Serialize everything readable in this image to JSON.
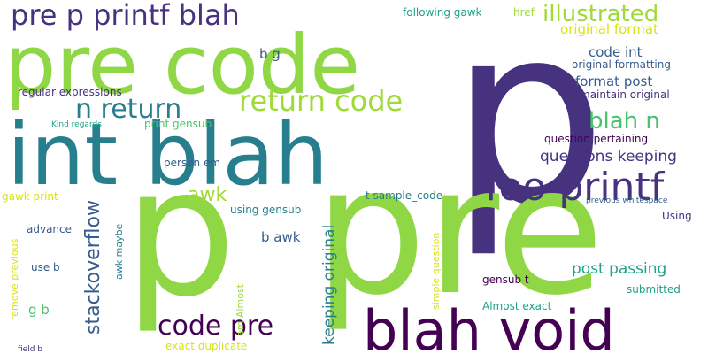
{
  "palette": {
    "background": "#ffffff",
    "dark_purple": "#440154",
    "indigo": "#46327e",
    "blue": "#365c8d",
    "teal": "#277f8e",
    "sea_green": "#1fa187",
    "green": "#4ac16d",
    "lime": "#a0da39",
    "yellow": "#d8e219"
  },
  "words": [
    {
      "text": "p",
      "color": "#46327e",
      "size": 280,
      "rotated": false
    },
    {
      "text": "pre",
      "color": "#8fd744",
      "size": 200,
      "rotated": false
    },
    {
      "text": "p",
      "color": "#8fd744",
      "size": 200,
      "rotated": false
    },
    {
      "text": "pre code",
      "color": "#8fd744",
      "size": 92,
      "rotated": false
    },
    {
      "text": "int blah",
      "color": "#277f8e",
      "size": 96,
      "rotated": false
    },
    {
      "text": "blah void",
      "color": "#440154",
      "size": 62,
      "rotated": false
    },
    {
      "text": "foo printf",
      "color": "#46327e",
      "size": 44,
      "rotated": false
    },
    {
      "text": "pre p printf blah",
      "color": "#46327e",
      "size": 32,
      "rotated": false
    },
    {
      "text": "return code",
      "color": "#a0da39",
      "size": 32,
      "rotated": false
    },
    {
      "text": "n return",
      "color": "#277f8e",
      "size": 30,
      "rotated": false
    },
    {
      "text": "code pre",
      "color": "#440154",
      "size": 30,
      "rotated": false
    },
    {
      "text": "illustrated",
      "color": "#a0da39",
      "size": 26,
      "rotated": false
    },
    {
      "text": "blah n",
      "color": "#4ac16d",
      "size": 26,
      "rotated": false
    },
    {
      "text": "stackoverflow",
      "color": "#365c8d",
      "size": 22,
      "rotated": true
    },
    {
      "text": "awk",
      "color": "#a0da39",
      "size": 22,
      "rotated": false
    },
    {
      "text": "keeping original",
      "color": "#277f8e",
      "size": 17,
      "rotated": true
    },
    {
      "text": "questions keeping",
      "color": "#46327e",
      "size": 17,
      "rotated": false
    },
    {
      "text": "post passing",
      "color": "#1fa187",
      "size": 17,
      "rotated": false
    },
    {
      "text": "original format",
      "color": "#d8e219",
      "size": 15,
      "rotated": false
    },
    {
      "text": "code int",
      "color": "#365c8d",
      "size": 15,
      "rotated": false
    },
    {
      "text": "format post",
      "color": "#365c8d",
      "size": 15,
      "rotated": false
    },
    {
      "text": "b awk",
      "color": "#365c8d",
      "size": 15,
      "rotated": false
    },
    {
      "text": "b g",
      "color": "#365c8d",
      "size": 15,
      "rotated": false
    },
    {
      "text": "g b",
      "color": "#4ac16d",
      "size": 15,
      "rotated": false
    },
    {
      "text": "following gawk",
      "color": "#1fa187",
      "size": 12,
      "rotated": false
    },
    {
      "text": "href",
      "color": "#a0da39",
      "size": 12,
      "rotated": false
    },
    {
      "text": "original formatting",
      "color": "#365c8d",
      "size": 12,
      "rotated": false
    },
    {
      "text": "regular expressions",
      "color": "#46327e",
      "size": 12,
      "rotated": false
    },
    {
      "text": "maintain original",
      "color": "#46327e",
      "size": 12,
      "rotated": false
    },
    {
      "text": "Kind regards",
      "color": "#1fa187",
      "size": 9,
      "rotated": false
    },
    {
      "text": "print gensub",
      "color": "#4ac16d",
      "size": 12,
      "rotated": false
    },
    {
      "text": "question pertaining",
      "color": "#440154",
      "size": 12,
      "rotated": false
    },
    {
      "text": "person em",
      "color": "#365c8d",
      "size": 12,
      "rotated": false
    },
    {
      "text": "gawk print",
      "color": "#d8e219",
      "size": 12,
      "rotated": false
    },
    {
      "text": "t sample_code",
      "color": "#277f8e",
      "size": 12,
      "rotated": false
    },
    {
      "text": "using gensub",
      "color": "#277f8e",
      "size": 12,
      "rotated": false
    },
    {
      "text": "advance",
      "color": "#365c8d",
      "size": 12,
      "rotated": false
    },
    {
      "text": "previous whitespace",
      "color": "#365c8d",
      "size": 9,
      "rotated": false
    },
    {
      "text": "Using",
      "color": "#46327e",
      "size": 12,
      "rotated": false
    },
    {
      "text": "awk maybe",
      "color": "#277f8e",
      "size": 11,
      "rotated": true
    },
    {
      "text": "remove previous",
      "color": "#d8e219",
      "size": 11,
      "rotated": true
    },
    {
      "text": "use b",
      "color": "#365c8d",
      "size": 12,
      "rotated": false
    },
    {
      "text": "em Almost",
      "color": "#a0da39",
      "size": 11,
      "rotated": true
    },
    {
      "text": "simple question",
      "color": "#d8e219",
      "size": 11,
      "rotated": true
    },
    {
      "text": "gensub t",
      "color": "#440154",
      "size": 12,
      "rotated": false
    },
    {
      "text": "submitted",
      "color": "#1fa187",
      "size": 12,
      "rotated": false
    },
    {
      "text": "Almost exact",
      "color": "#1fa187",
      "size": 12,
      "rotated": false
    },
    {
      "text": "exact duplicate",
      "color": "#d8e219",
      "size": 12,
      "rotated": false
    },
    {
      "text": "field b",
      "color": "#46327e",
      "size": 9,
      "rotated": false
    }
  ]
}
